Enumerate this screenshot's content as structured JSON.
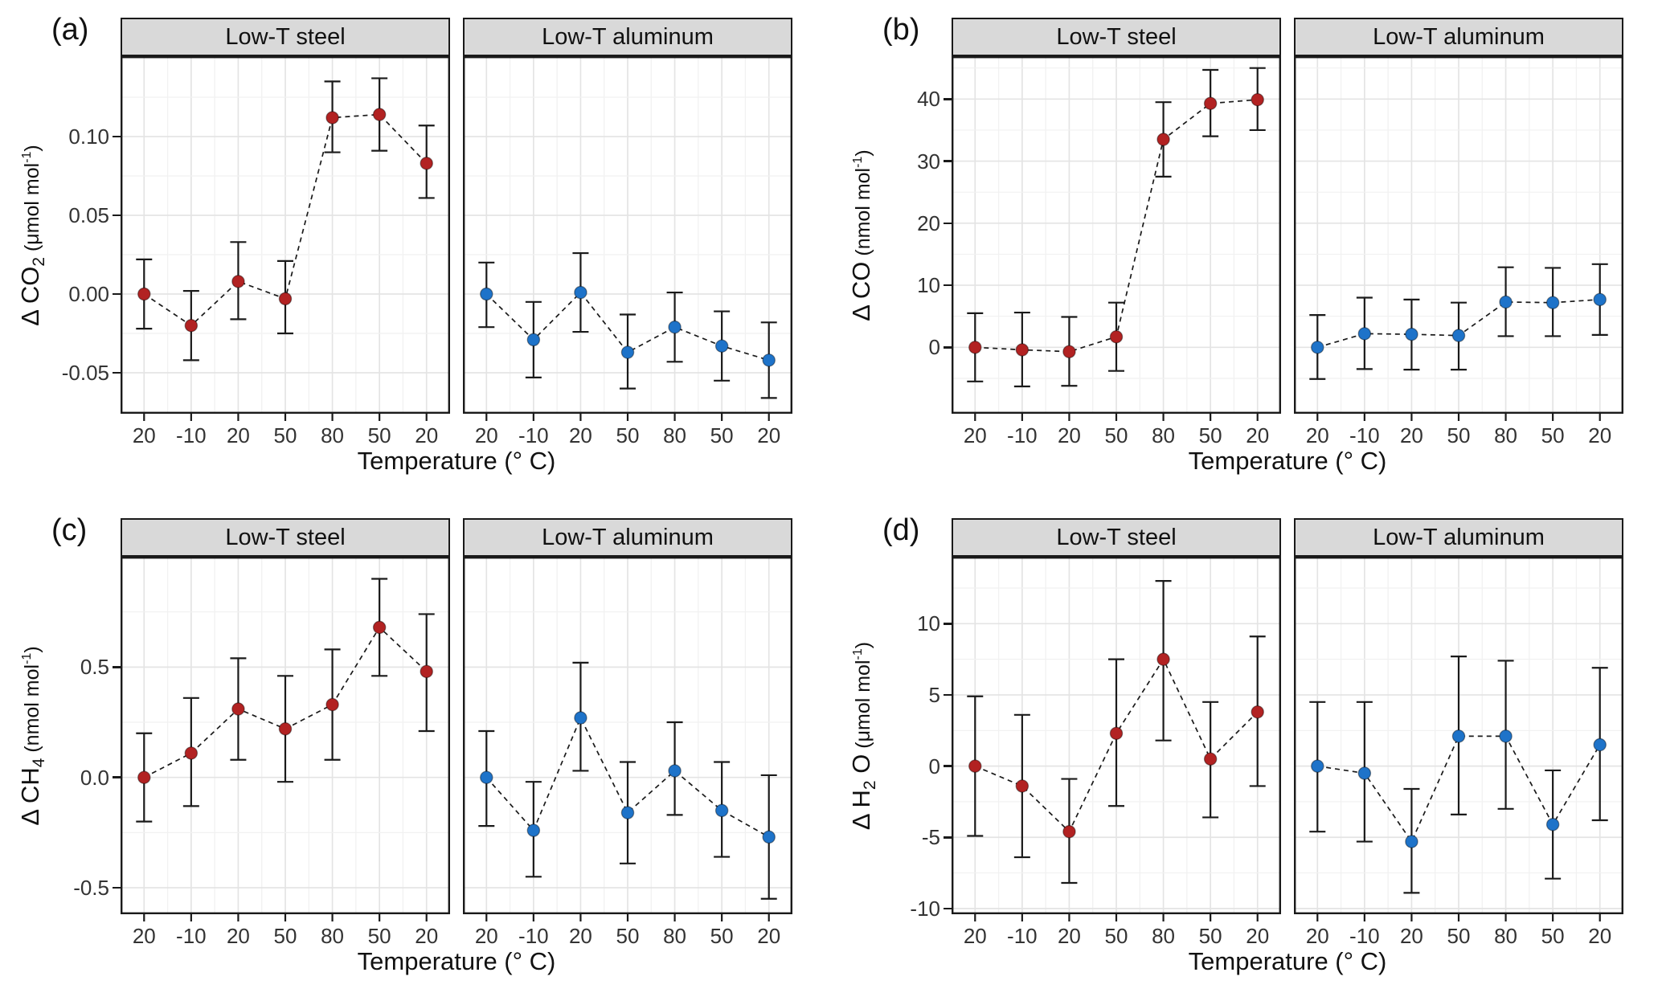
{
  "figure": {
    "x_axis_title": "Temperature (° C)",
    "x_categories": [
      "20",
      "-10",
      "20",
      "50",
      "80",
      "50",
      "20"
    ],
    "facet_labels": [
      "Low-T steel",
      "Low-T aluminum"
    ],
    "colors": {
      "steel": "#b22222",
      "aluminum": "#1e73c9",
      "frame": "#1a1a1a",
      "errorbar": "#1a1a1a",
      "dashed_line": "#1a1a1a",
      "strip_bg": "#d9d9d9",
      "grid_major": "#e4e4e4",
      "grid_minor": "#f1f1f1",
      "tick_text": "#333333"
    }
  },
  "chart_data": [
    {
      "id": "a",
      "label": "(a)",
      "type": "scatter",
      "ylabel_parts": [
        {
          "t": "Δ CO",
          "k": "main"
        },
        {
          "t": "2",
          "k": "sub"
        },
        {
          "t": " (μmol mol",
          "k": "unit"
        },
        {
          "t": "-1",
          "k": "sup"
        },
        {
          "t": ")",
          "k": "unit"
        }
      ],
      "ylabel_text": "Δ CO2 (μmol mol-1)",
      "ylim": [
        -0.076,
        0.151
      ],
      "yticks": [
        0.1,
        0.05,
        0.0,
        -0.05
      ],
      "ytick_labels": [
        "0.10",
        "0.05",
        "0.00",
        "-0.05"
      ],
      "series": [
        {
          "facet": "Low-T steel",
          "color_key": "steel",
          "values": [
            0.0,
            -0.02,
            0.008,
            -0.003,
            0.112,
            0.114,
            0.083
          ],
          "err_lo": [
            -0.022,
            -0.042,
            -0.016,
            -0.025,
            0.09,
            0.091,
            0.061
          ],
          "err_hi": [
            0.022,
            0.002,
            0.033,
            0.021,
            0.135,
            0.137,
            0.107
          ]
        },
        {
          "facet": "Low-T aluminum",
          "color_key": "aluminum",
          "values": [
            0.0,
            -0.029,
            0.001,
            -0.037,
            -0.021,
            -0.033,
            -0.042
          ],
          "err_lo": [
            -0.021,
            -0.053,
            -0.024,
            -0.06,
            -0.043,
            -0.055,
            -0.066
          ],
          "err_hi": [
            0.02,
            -0.005,
            0.026,
            -0.013,
            0.001,
            -0.011,
            -0.018
          ]
        }
      ]
    },
    {
      "id": "b",
      "label": "(b)",
      "type": "scatter",
      "ylabel_parts": [
        {
          "t": "Δ CO",
          "k": "main"
        },
        {
          "t": " (nmol mol",
          "k": "unit"
        },
        {
          "t": "-1",
          "k": "sup"
        },
        {
          "t": ")",
          "k": "unit"
        }
      ],
      "ylabel_text": "Δ CO (nmol mol-1)",
      "ylim": [
        -10.7,
        46.9
      ],
      "yticks": [
        40,
        30,
        20,
        10,
        0
      ],
      "ytick_labels": [
        "40",
        "30",
        "20",
        "10",
        "0"
      ],
      "series": [
        {
          "facet": "Low-T steel",
          "color_key": "steel",
          "values": [
            0.0,
            -0.4,
            -0.7,
            1.7,
            33.5,
            39.3,
            39.9
          ],
          "err_lo": [
            -5.5,
            -6.3,
            -6.2,
            -3.8,
            27.5,
            34.0,
            35.0
          ],
          "err_hi": [
            5.5,
            5.6,
            4.9,
            7.2,
            39.5,
            44.7,
            45.0
          ]
        },
        {
          "facet": "Low-T aluminum",
          "color_key": "aluminum",
          "values": [
            0.0,
            2.2,
            2.1,
            1.9,
            7.3,
            7.2,
            7.7
          ],
          "err_lo": [
            -5.1,
            -3.5,
            -3.6,
            -3.6,
            1.8,
            1.8,
            2.0
          ],
          "err_hi": [
            5.2,
            8.0,
            7.7,
            7.2,
            12.9,
            12.8,
            13.4
          ]
        }
      ]
    },
    {
      "id": "c",
      "label": "(c)",
      "type": "scatter",
      "ylabel_parts": [
        {
          "t": "Δ CH",
          "k": "main"
        },
        {
          "t": "4",
          "k": "sub"
        },
        {
          "t": " (nmol mol",
          "k": "unit"
        },
        {
          "t": "-1",
          "k": "sup"
        },
        {
          "t": ")",
          "k": "unit"
        }
      ],
      "ylabel_text": "Δ CH4 (nmol mol-1)",
      "ylim": [
        -0.62,
        1.0
      ],
      "yticks": [
        0.5,
        0.0,
        -0.5
      ],
      "ytick_labels": [
        "0.5",
        "0.0",
        "-0.5"
      ],
      "series": [
        {
          "facet": "Low-T steel",
          "color_key": "steel",
          "values": [
            0.0,
            0.11,
            0.31,
            0.22,
            0.33,
            0.68,
            0.48
          ],
          "err_lo": [
            -0.2,
            -0.13,
            0.08,
            -0.02,
            0.08,
            0.46,
            0.21
          ],
          "err_hi": [
            0.2,
            0.36,
            0.54,
            0.46,
            0.58,
            0.9,
            0.74
          ]
        },
        {
          "facet": "Low-T aluminum",
          "color_key": "aluminum",
          "values": [
            0.0,
            -0.24,
            0.27,
            -0.16,
            0.03,
            -0.15,
            -0.27
          ],
          "err_lo": [
            -0.22,
            -0.45,
            0.03,
            -0.39,
            -0.17,
            -0.36,
            -0.55
          ],
          "err_hi": [
            0.21,
            -0.02,
            0.52,
            0.07,
            0.25,
            0.07,
            0.01
          ]
        }
      ]
    },
    {
      "id": "d",
      "label": "(d)",
      "type": "scatter",
      "ylabel_parts": [
        {
          "t": "Δ H",
          "k": "main"
        },
        {
          "t": "2",
          "k": "sub"
        },
        {
          "t": " O",
          "k": "main"
        },
        {
          "t": " (μmol mol",
          "k": "unit"
        },
        {
          "t": "-1",
          "k": "sup"
        },
        {
          "t": ")",
          "k": "unit"
        }
      ],
      "ylabel_text": "Δ H2 O (μmol mol-1)",
      "ylim": [
        -10.4,
        14.7
      ],
      "yticks": [
        10,
        5,
        0,
        -5,
        -10
      ],
      "ytick_labels": [
        "10",
        "5",
        "0",
        "-5",
        "-10"
      ],
      "series": [
        {
          "facet": "Low-T steel",
          "color_key": "steel",
          "values": [
            0.0,
            -1.4,
            -4.6,
            2.3,
            7.5,
            0.5,
            3.8
          ],
          "err_lo": [
            -4.9,
            -6.4,
            -8.2,
            -2.8,
            1.8,
            -3.6,
            -1.4
          ],
          "err_hi": [
            4.9,
            3.6,
            -0.9,
            7.5,
            13.0,
            4.5,
            9.1
          ]
        },
        {
          "facet": "Low-T aluminum",
          "color_key": "aluminum",
          "values": [
            0.0,
            -0.5,
            -5.3,
            2.1,
            2.1,
            -4.1,
            1.5
          ],
          "err_lo": [
            -4.6,
            -5.3,
            -8.9,
            -3.4,
            -3.0,
            -7.9,
            -3.8
          ],
          "err_hi": [
            4.5,
            4.5,
            -1.6,
            7.7,
            7.4,
            -0.3,
            6.9
          ]
        }
      ]
    }
  ]
}
